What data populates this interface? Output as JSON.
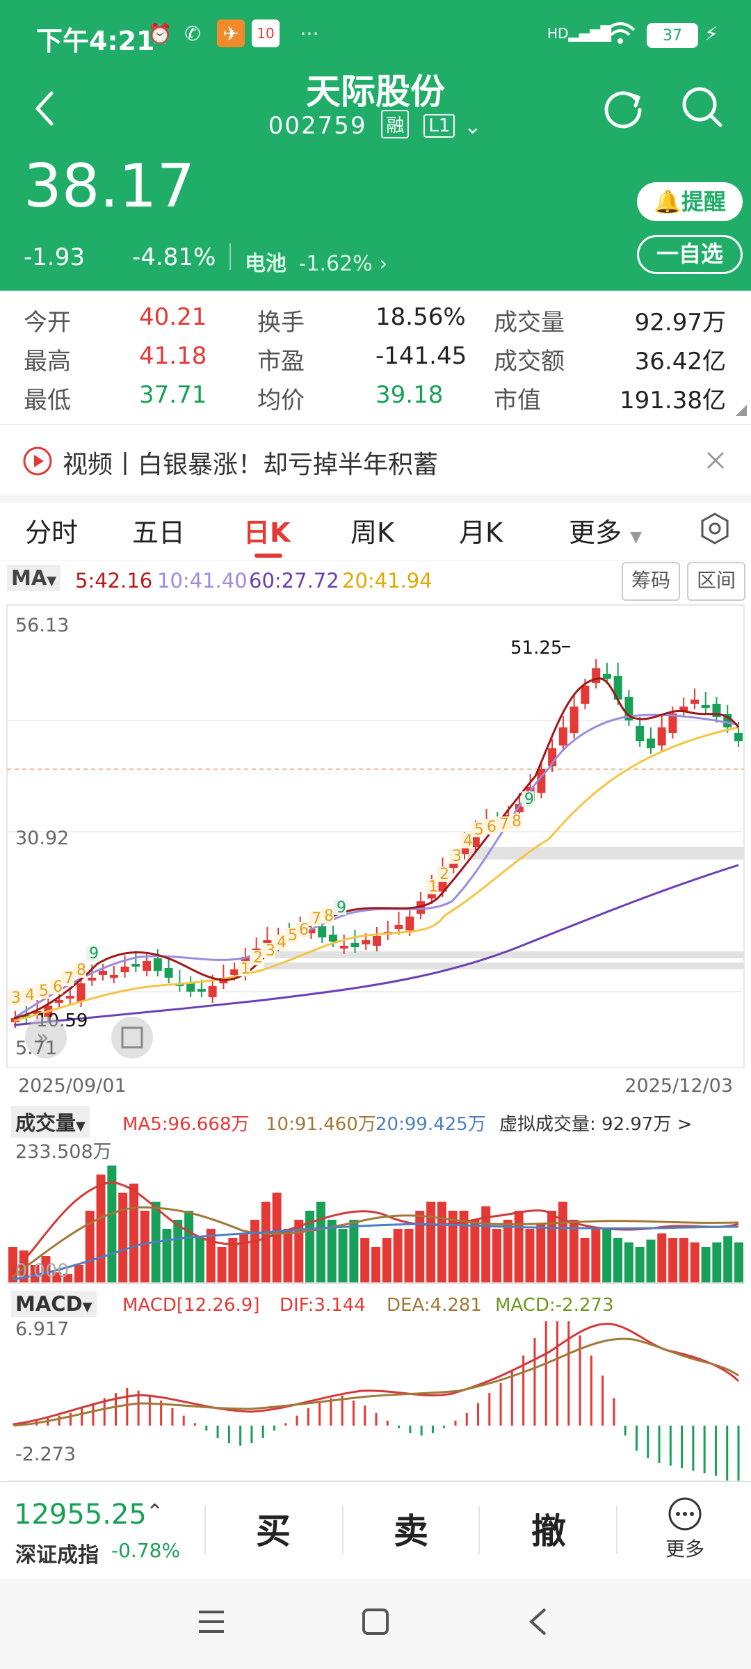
{
  "status_bar": {
    "time": "下午4:21",
    "battery": "37",
    "network": "HD"
  },
  "header": {
    "title": "天际股份",
    "code": "002759",
    "tag_margin": "融",
    "tag_level": "L1",
    "price": "38.17",
    "change": "-1.93",
    "change_pct": "-4.81%",
    "sector_name": "电池",
    "sector_pct": "-1.62%",
    "alert_label": "提醒",
    "watchlist_label": "一自选"
  },
  "quote": {
    "open_label": "今开",
    "open": "40.21",
    "high_label": "最高",
    "high": "41.18",
    "low_label": "最低",
    "low": "37.71",
    "turnover_label": "换手",
    "turnover": "18.56%",
    "pe_label": "市盈",
    "pe": "-141.45",
    "avg_label": "均价",
    "avg": "39.18",
    "volume_label": "成交量",
    "volume": "92.97万",
    "amount_label": "成交额",
    "amount": "36.42亿",
    "mcap_label": "市值",
    "mcap": "191.38亿"
  },
  "banner": {
    "text": "视频丨白银暴涨！却亏掉半年积蓄"
  },
  "tabs": [
    "分时",
    "五日",
    "日K",
    "周K",
    "月K",
    "更多"
  ],
  "active_tab": "日K",
  "ma_legend": {
    "label": "MA",
    "ma5": "5:42.16",
    "ma10": "10:41.40",
    "ma60": "60:27.72",
    "ma20": "20:41.94",
    "chip_button": "筹码",
    "range_button": "区间"
  },
  "kline": {
    "y_top": "56.13",
    "y_mid": "30.92",
    "y_bottom": "5.71",
    "max_label": "51.25",
    "min_label": "10.59",
    "date_start": "2025/09/01",
    "date_end": "2025/12/03"
  },
  "volume_panel": {
    "label": "成交量",
    "ma5": "MA5:96.668万",
    "ma10": "10:91.460万",
    "ma20": "20:99.425万",
    "virtual": "虚拟成交量: 92.97万 >",
    "y_top": "233.508万",
    "y_bottom": "0.000"
  },
  "macd_panel": {
    "label": "MACD",
    "params": "MACD[12.26.9]",
    "dif": "DIF:3.144",
    "dea": "DEA:4.281",
    "macd": "MACD:-2.273",
    "y_top": "6.917",
    "y_bottom": "-2.273"
  },
  "index": {
    "value": "12955.25",
    "name": "深证成指",
    "pct": "-0.78%"
  },
  "actions": {
    "buy": "买",
    "sell": "卖",
    "cancel": "撤",
    "more": "更多"
  },
  "colors": {
    "header": "#1fad68",
    "up": "#e53935",
    "down": "#18a058",
    "ma5": "#b71c1c",
    "ma10": "#9c8be0",
    "ma20": "#f5c542",
    "ma60": "#6a3fb5"
  }
}
